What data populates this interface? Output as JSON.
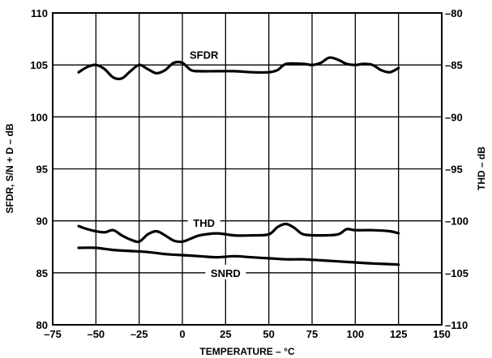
{
  "chart_data": {
    "type": "line",
    "xlabel": "TEMPERATURE – °C",
    "ylabel_left": "SFDR, S/N + D – dB",
    "ylabel_right": "THD – dB",
    "xlim": [
      -75,
      150
    ],
    "ylim_left": [
      80,
      110
    ],
    "ylim_right": [
      -110,
      -80
    ],
    "x_ticks": [
      -75,
      -50,
      -25,
      0,
      25,
      50,
      75,
      100,
      125,
      150
    ],
    "x_tick_labels": [
      "–75",
      "–50",
      "–25",
      "0",
      "25",
      "50",
      "75",
      "100",
      "125",
      "150"
    ],
    "y_left_ticks": [
      80,
      85,
      90,
      95,
      100,
      105,
      110
    ],
    "y_left_tick_labels": [
      "80",
      "85",
      "90",
      "95",
      "100",
      "105",
      "110"
    ],
    "y_right_ticks": [
      -110,
      -105,
      -100,
      -95,
      -90,
      -85,
      -80
    ],
    "y_right_tick_labels": [
      "–110",
      "–105",
      "–100",
      "–95",
      "–90",
      "–85",
      "–80"
    ],
    "grid": true,
    "series": [
      {
        "name": "SFDR",
        "axis": "left",
        "x": [
          -60,
          -55,
          -50,
          -45,
          -40,
          -35,
          -30,
          -25,
          -20,
          -15,
          -10,
          -5,
          0,
          5,
          10,
          20,
          30,
          40,
          50,
          55,
          60,
          70,
          75,
          80,
          85,
          90,
          95,
          100,
          105,
          110,
          115,
          120,
          125
        ],
        "values": [
          104.3,
          104.8,
          105.0,
          104.6,
          103.8,
          103.7,
          104.4,
          105.0,
          104.6,
          104.2,
          104.5,
          105.2,
          105.2,
          104.5,
          104.4,
          104.4,
          104.4,
          104.3,
          104.3,
          104.5,
          105.1,
          105.1,
          105.0,
          105.2,
          105.7,
          105.5,
          105.1,
          105.0,
          105.1,
          105.0,
          104.5,
          104.3,
          104.7
        ]
      },
      {
        "name": "THD",
        "axis": "right",
        "x": [
          -60,
          -55,
          -50,
          -45,
          -40,
          -35,
          -30,
          -25,
          -20,
          -15,
          -10,
          -5,
          0,
          5,
          10,
          20,
          30,
          40,
          50,
          55,
          60,
          65,
          70,
          80,
          90,
          95,
          100,
          110,
          120,
          125
        ],
        "values": [
          -100.5,
          -100.8,
          -101.0,
          -101.1,
          -100.9,
          -101.4,
          -101.8,
          -102.0,
          -101.3,
          -101.0,
          -101.4,
          -101.9,
          -102.0,
          -101.7,
          -101.4,
          -101.2,
          -101.4,
          -101.4,
          -101.3,
          -100.6,
          -100.3,
          -100.7,
          -101.3,
          -101.4,
          -101.3,
          -100.8,
          -100.9,
          -100.9,
          -101.0,
          -101.2
        ]
      },
      {
        "name": "SNRD",
        "axis": "left",
        "x": [
          -60,
          -50,
          -40,
          -30,
          -20,
          -10,
          0,
          10,
          20,
          30,
          40,
          50,
          60,
          70,
          80,
          90,
          100,
          110,
          125
        ],
        "values": [
          87.4,
          87.4,
          87.2,
          87.1,
          87.0,
          86.8,
          86.7,
          86.6,
          86.5,
          86.6,
          86.5,
          86.4,
          86.3,
          86.3,
          86.2,
          86.1,
          86.0,
          85.9,
          85.8
        ]
      }
    ],
    "series_labels": [
      "SFDR",
      "THD",
      "SNRD"
    ]
  }
}
